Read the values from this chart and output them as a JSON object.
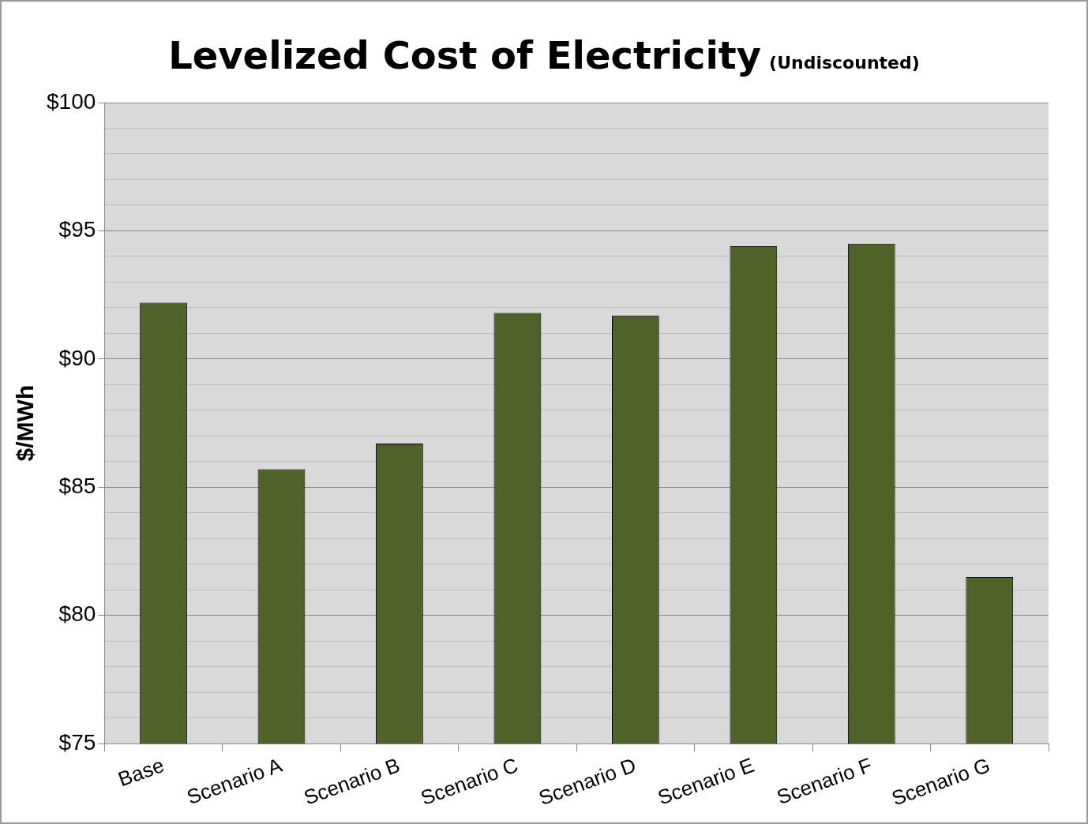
{
  "chart_data": {
    "type": "bar",
    "title": "Levelized Cost of Electricity",
    "subtitle": "(Undiscounted)",
    "ylabel": "$/MWh",
    "categories": [
      "Base",
      "Scenario A",
      "Scenario B",
      "Scenario C",
      "Scenario D",
      "Scenario E",
      "Scenario F",
      "Scenario G"
    ],
    "values": [
      92.2,
      85.7,
      86.7,
      91.8,
      91.7,
      94.4,
      94.5,
      81.5
    ],
    "color": "#4f6228",
    "ylim": [
      75,
      100
    ],
    "yticks": [
      {
        "value": 75,
        "label": "$75"
      },
      {
        "value": 76,
        "label": null
      },
      {
        "value": 77,
        "label": null
      },
      {
        "value": 78,
        "label": null
      },
      {
        "value": 79,
        "label": null
      },
      {
        "value": 80,
        "label": "$80"
      },
      {
        "value": 81,
        "label": null
      },
      {
        "value": 82,
        "label": null
      },
      {
        "value": 83,
        "label": null
      },
      {
        "value": 84,
        "label": null
      },
      {
        "value": 85,
        "label": "$85"
      },
      {
        "value": 86,
        "label": null
      },
      {
        "value": 87,
        "label": null
      },
      {
        "value": 88,
        "label": null
      },
      {
        "value": 89,
        "label": null
      },
      {
        "value": 90,
        "label": "$90"
      },
      {
        "value": 91,
        "label": null
      },
      {
        "value": 92,
        "label": null
      },
      {
        "value": 93,
        "label": null
      },
      {
        "value": 94,
        "label": null
      },
      {
        "value": 95,
        "label": "$95"
      },
      {
        "value": 96,
        "label": null
      },
      {
        "value": 97,
        "label": null
      },
      {
        "value": 98,
        "label": null
      },
      {
        "value": 99,
        "label": null
      },
      {
        "value": 100,
        "label": "$100"
      }
    ],
    "grid": "y",
    "legend": false
  }
}
